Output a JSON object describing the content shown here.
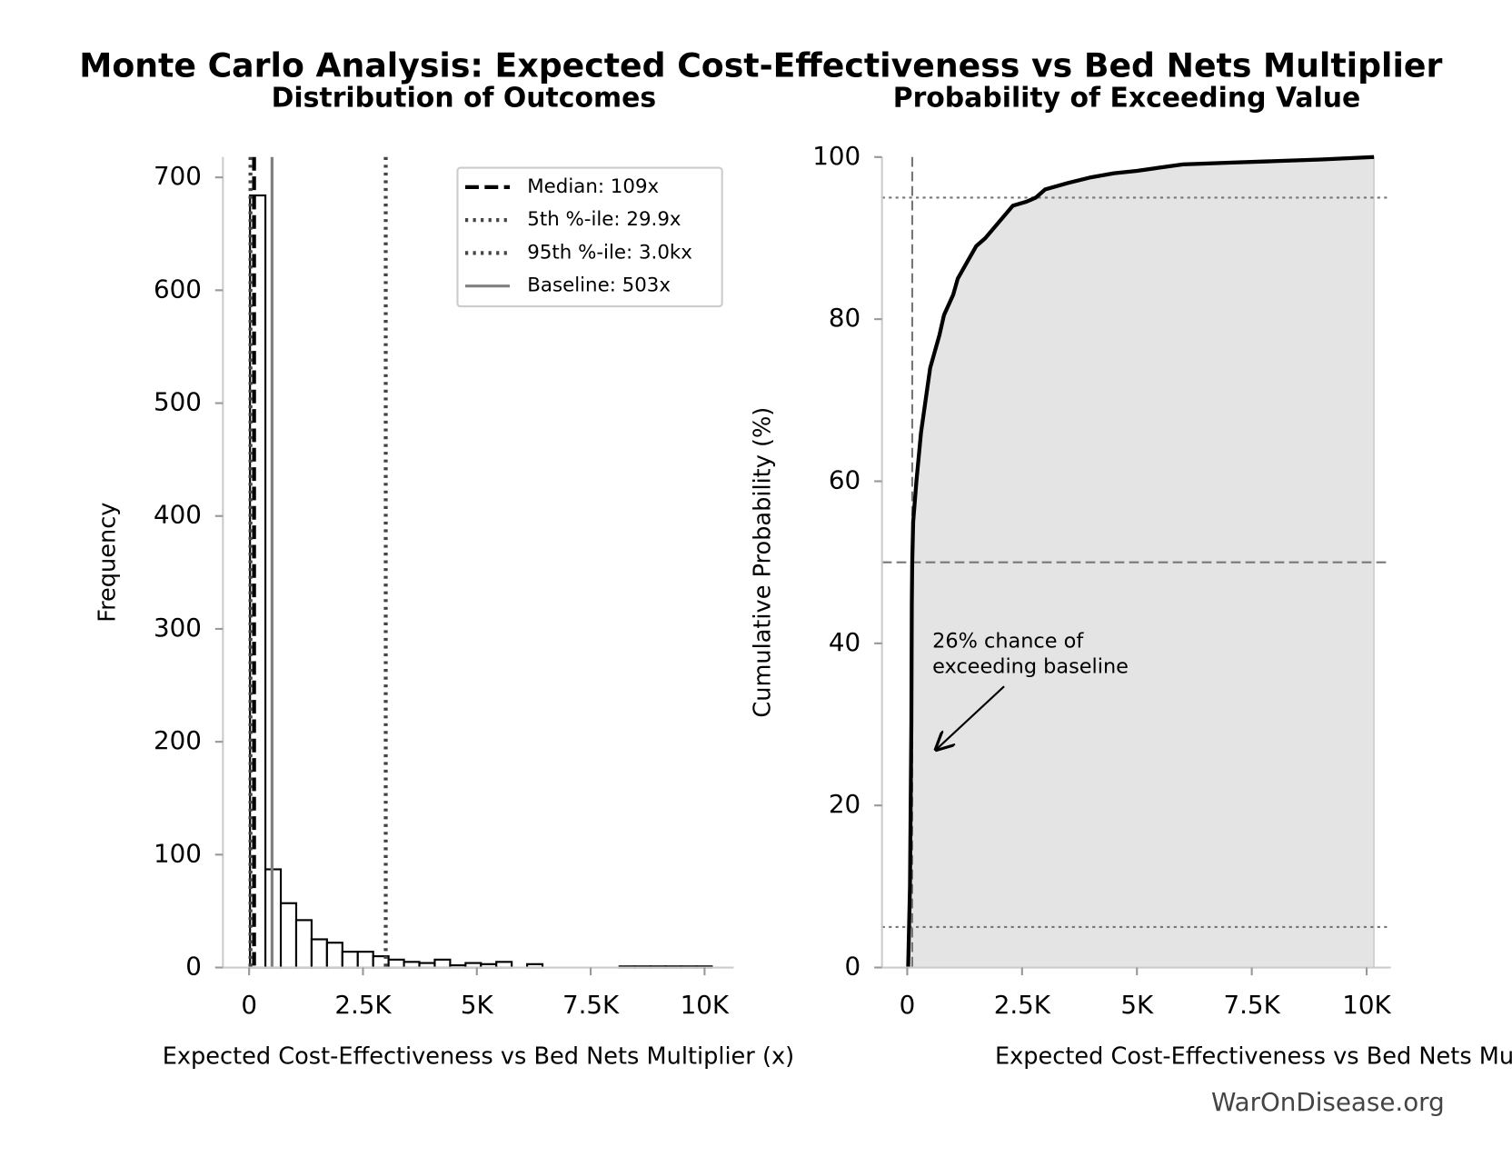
{
  "title": "Monte Carlo Analysis: Expected Cost-Effectiveness vs Bed Nets Multiplier",
  "footer": "WarOnDisease.org",
  "chart_data": [
    {
      "type": "histogram",
      "title": "Distribution of Outcomes",
      "x_label": "Expected Cost-Effectiveness vs Bed Nets Multiplier (x)",
      "y_label": "Frequency",
      "bins": [
        20,
        358,
        696,
        1034,
        1372,
        1710,
        2048,
        2386,
        2724,
        3062,
        3400,
        3738,
        4076,
        4414,
        4752,
        5090,
        5428,
        5766,
        6104,
        6442,
        6780,
        7118,
        7456,
        7794,
        8132,
        8470,
        8808,
        9146,
        9484,
        9822,
        10160
      ],
      "values": [
        684,
        87,
        57,
        42,
        25,
        22,
        14,
        14,
        10,
        7,
        5,
        4,
        7,
        2,
        4,
        3,
        5,
        0,
        3,
        0,
        0,
        0,
        0,
        0,
        1,
        1,
        1,
        1,
        1,
        1
      ],
      "color": "#ffffff",
      "edge_color": "#000000",
      "reference_lines": [
        {
          "name": "Median: 109x",
          "value": 109,
          "style": "dashed",
          "color": "#000000"
        },
        {
          "name": "5th %-ile: 29.9x",
          "value": 29.9,
          "style": "dotted",
          "color": "#444444"
        },
        {
          "name": "95th %-ile: 3.0kx",
          "value": 3000,
          "style": "dotted",
          "color": "#444444"
        },
        {
          "name": "Baseline: 503x",
          "value": 503,
          "style": "solid",
          "color": "#808080"
        }
      ],
      "legend": "upper right",
      "xlim": [
        -575,
        10640
      ],
      "ylim": [
        0,
        718
      ],
      "xticks": [
        0,
        {
          "value": 2500,
          "label": "2.5K"
        },
        {
          "value": 5000,
          "label": "5K"
        },
        {
          "value": 7500,
          "label": "7.5K"
        },
        {
          "value": 10000,
          "label": "10K"
        }
      ],
      "yticks": [
        0,
        100,
        200,
        300,
        400,
        500,
        600,
        700
      ]
    },
    {
      "type": "line",
      "title": "Probability of Exceeding Value",
      "x_label": "Expected Cost-Effectiveness vs Bed Nets Multiplier (x)",
      "y_label": "Cumulative Probability (%)",
      "x": [
        20,
        60,
        90,
        100,
        109,
        130,
        200,
        300,
        400,
        500,
        600,
        700,
        800,
        1000,
        1100,
        1300,
        1500,
        1700,
        2000,
        2300,
        2600,
        2800,
        3000,
        3500,
        4000,
        4500,
        5000,
        5500,
        6000,
        7000,
        8000,
        9000,
        10160
      ],
      "values": [
        0,
        10,
        30,
        45,
        50,
        55,
        60,
        66,
        70,
        74,
        76,
        78,
        80.5,
        83,
        85,
        87,
        89,
        90,
        92,
        94,
        94.5,
        95,
        96,
        96.8,
        97.5,
        98,
        98.3,
        98.7,
        99.1,
        99.3,
        99.5,
        99.7,
        100
      ],
      "color": "#000000",
      "fill": "#e4e4e4",
      "hlines": [
        {
          "value": 95,
          "style": "dotted"
        },
        {
          "value": 50,
          "style": "dashed"
        },
        {
          "value": 5,
          "style": "dotted"
        }
      ],
      "vline": {
        "value": 109,
        "style": "dashed"
      },
      "annotation": [
        "26% chance of",
        "exceeding baseline"
      ],
      "xlim": [
        -549,
        10527
      ],
      "ylim": [
        0,
        100
      ],
      "xticks": [
        0,
        {
          "value": 2500,
          "label": "2.5K"
        },
        {
          "value": 5000,
          "label": "5K"
        },
        {
          "value": 7500,
          "label": "7.5K"
        },
        {
          "value": 10000,
          "label": "10K"
        }
      ],
      "yticks": [
        0,
        20,
        40,
        60,
        80,
        100
      ]
    }
  ]
}
